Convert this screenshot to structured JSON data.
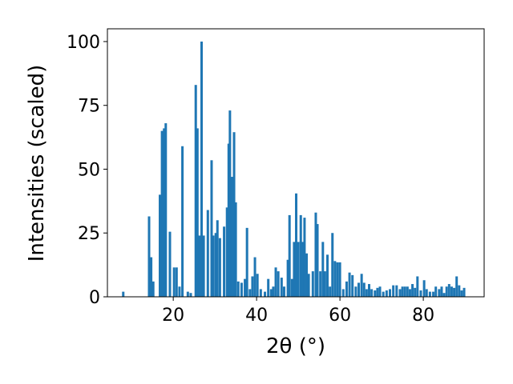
{
  "chart_data": {
    "type": "bar",
    "xlabel": "2θ (°)",
    "ylabel": "Intensities (scaled)",
    "color": "#1f77b4",
    "x": [
      8,
      14.2,
      14.7,
      15.2,
      16.8,
      17.3,
      17.8,
      18.2,
      19.2,
      20.2,
      20.8,
      21.5,
      22.2,
      23.5,
      24.2,
      25.4,
      25.8,
      26.3,
      26.8,
      27.3,
      28.3,
      29.2,
      29.6,
      30.2,
      30.6,
      31.2,
      32.2,
      32.9,
      33.3,
      33.6,
      34.1,
      34.6,
      35.0,
      35.6,
      36.4,
      37.2,
      37.7,
      38.4,
      39.0,
      39.6,
      40.2,
      41.0,
      42.0,
      42.8,
      43.5,
      44.0,
      44.6,
      45.2,
      46.0,
      46.6,
      47.5,
      47.9,
      48.5,
      49.0,
      49.5,
      50.0,
      50.6,
      51.1,
      51.5,
      52.0,
      52.5,
      53.5,
      54.2,
      54.6,
      55.3,
      55.9,
      56.4,
      57.0,
      57.6,
      58.2,
      58.8,
      59.4,
      60.0,
      60.8,
      61.6,
      62.3,
      63.0,
      63.8,
      64.5,
      65.2,
      65.8,
      66.4,
      67.0,
      67.6,
      68.4,
      69.0,
      69.6,
      70.4,
      71.2,
      72.0,
      72.8,
      73.6,
      74.4,
      75.0,
      75.6,
      76.2,
      76.8,
      77.4,
      78.0,
      78.6,
      79.4,
      80.2,
      80.8,
      81.6,
      82.4,
      83.0,
      83.8,
      84.4,
      85.0,
      85.6,
      86.2,
      86.8,
      87.4,
      88.0,
      88.6,
      89.2,
      89.8
    ],
    "values": [
      2,
      31.5,
      15.5,
      6,
      40,
      65,
      66,
      68,
      25.5,
      11.5,
      11.5,
      4,
      59,
      2,
      1.5,
      83,
      66,
      24,
      100,
      24,
      34,
      53.5,
      24,
      25,
      30,
      23,
      27.5,
      35,
      60,
      73,
      47,
      64.5,
      37,
      6,
      5.5,
      7,
      27,
      3,
      8,
      15.5,
      9,
      3,
      2,
      7,
      3,
      4,
      11.5,
      10,
      7.5,
      4,
      14.5,
      32,
      7,
      21.5,
      40.5,
      21.5,
      32,
      21.5,
      31,
      17,
      9,
      10,
      33,
      28.5,
      10,
      21.5,
      10,
      16.5,
      4,
      25,
      14,
      13.5,
      13.5,
      3,
      6,
      9.5,
      8.5,
      4,
      5.5,
      9,
      5.5,
      3,
      5,
      3,
      2.5,
      3.5,
      4,
      2,
      2.5,
      3,
      4.5,
      4.5,
      3,
      4,
      4,
      4,
      3,
      5,
      3.5,
      8,
      2.5,
      6.5,
      3,
      2,
      2,
      4,
      3,
      4,
      1.5,
      4,
      5,
      4,
      3.5,
      8,
      4.5,
      2.5,
      3.5
    ],
    "xlim": [
      4.2,
      94.6
    ],
    "ylim": [
      0,
      105
    ],
    "xticks": [
      20,
      40,
      60,
      80
    ],
    "yticks": [
      0,
      25,
      50,
      75,
      100
    ]
  }
}
